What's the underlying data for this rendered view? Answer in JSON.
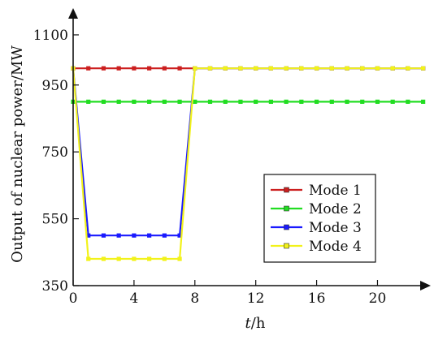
{
  "chart_data": {
    "type": "line",
    "title": "",
    "xlabel": "t/h",
    "xlabel_italic": "t",
    "xlabel_rest": "/h",
    "ylabel": "Output of nuclear power/MW",
    "xlim": [
      0,
      23.5
    ],
    "ylim": [
      350,
      1180
    ],
    "xticks": [
      0,
      4,
      8,
      12,
      16,
      20
    ],
    "yticks": [
      350,
      550,
      750,
      950,
      1100
    ],
    "grid": false,
    "legend_position": "bottom-right",
    "x": [
      0,
      1,
      2,
      3,
      4,
      5,
      6,
      7,
      8,
      9,
      10,
      11,
      12,
      13,
      14,
      15,
      16,
      17,
      18,
      19,
      20,
      21,
      22,
      23
    ],
    "series": [
      {
        "name": "Mode 1",
        "color": "#cc1f1f",
        "values": [
          1000,
          1000,
          1000,
          1000,
          1000,
          1000,
          1000,
          1000,
          1000,
          1000,
          1000,
          1000,
          1000,
          1000,
          1000,
          1000,
          1000,
          1000,
          1000,
          1000,
          1000,
          1000,
          1000,
          1000
        ]
      },
      {
        "name": "Mode 2",
        "color": "#22dd22",
        "values": [
          900,
          900,
          900,
          900,
          900,
          900,
          900,
          900,
          900,
          900,
          900,
          900,
          900,
          900,
          900,
          900,
          900,
          900,
          900,
          900,
          900,
          900,
          900,
          900
        ]
      },
      {
        "name": "Mode 3",
        "color": "#1a1aff",
        "values": [
          1000,
          500,
          500,
          500,
          500,
          500,
          500,
          500,
          1000,
          1000,
          1000,
          1000,
          1000,
          1000,
          1000,
          1000,
          1000,
          1000,
          1000,
          1000,
          1000,
          1000,
          1000,
          1000
        ]
      },
      {
        "name": "Mode 4",
        "color": "#f2f21a",
        "values": [
          1000,
          430,
          430,
          430,
          430,
          430,
          430,
          430,
          1000,
          1000,
          1000,
          1000,
          1000,
          1000,
          1000,
          1000,
          1000,
          1000,
          1000,
          1000,
          1000,
          1000,
          1000,
          1000
        ]
      }
    ]
  }
}
